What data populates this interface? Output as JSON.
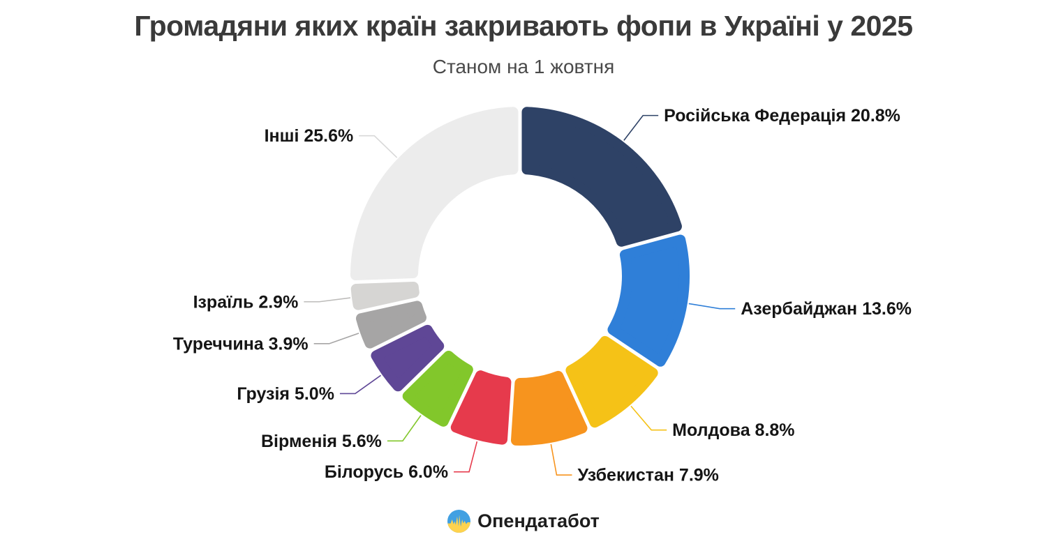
{
  "chart_data": {
    "type": "pie",
    "subtype": "donut",
    "title": "Громадяни яких країн закривають фопи в Україні у 2025",
    "subtitle": "Станом на 1 жовтня",
    "unit": "%",
    "start_angle_deg": -90,
    "direction": "clockwise",
    "legend_position": "none",
    "label_style": "outside-callout",
    "label_text_color": "#151515",
    "slices": [
      {
        "label": "Російська Федерація",
        "value": 20.8,
        "color": "#2e4266"
      },
      {
        "label": "Азербайджан",
        "value": 13.6,
        "color": "#2f7fd8"
      },
      {
        "label": "Молдова",
        "value": 8.8,
        "color": "#f5c217"
      },
      {
        "label": "Узбекистан",
        "value": 7.9,
        "color": "#f7941e"
      },
      {
        "label": "Білорусь",
        "value": 6.0,
        "color": "#e63a4c"
      },
      {
        "label": "Вірменія",
        "value": 5.6,
        "color": "#82c72b"
      },
      {
        "label": "Грузія",
        "value": 5.0,
        "color": "#5f4796"
      },
      {
        "label": "Туреччина",
        "value": 3.9,
        "color": "#a6a5a5"
      },
      {
        "label": "Ізраїль",
        "value": 2.9,
        "color": "#d6d5d3",
        "leader_color": "#bdbcba"
      },
      {
        "label": "Інші",
        "value": 25.6,
        "color": "#ececec",
        "leader_color": "#d8d8d8"
      }
    ]
  },
  "footer": {
    "brand": "Опендатабот",
    "logo_icon": "opendatabot-flag-circle-icon"
  }
}
